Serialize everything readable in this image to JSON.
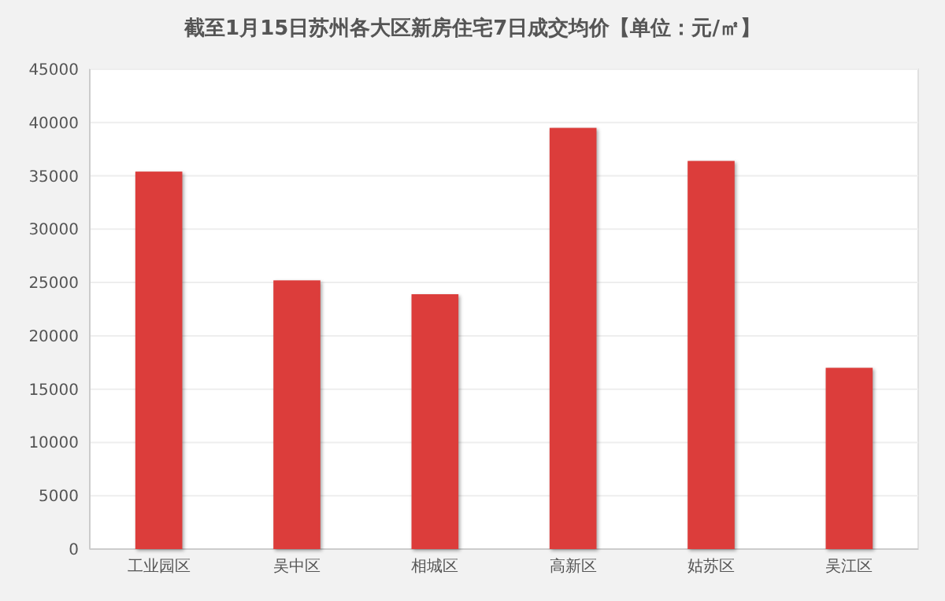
{
  "chart_data": {
    "type": "bar",
    "title": "截至1月15日苏州各大区新房住宅7日成交均价【单位：元/㎡】",
    "categories": [
      "工业园区",
      "吴中区",
      "相城区",
      "高新区",
      "姑苏区",
      "吴江区"
    ],
    "values": [
      35400,
      25200,
      23900,
      39500,
      36400,
      17000
    ],
    "color": "#dc3d3b",
    "ylim": [
      0,
      45000
    ],
    "yticks": [
      0,
      5000,
      10000,
      15000,
      20000,
      25000,
      30000,
      35000,
      40000,
      45000
    ],
    "grid": "y"
  }
}
